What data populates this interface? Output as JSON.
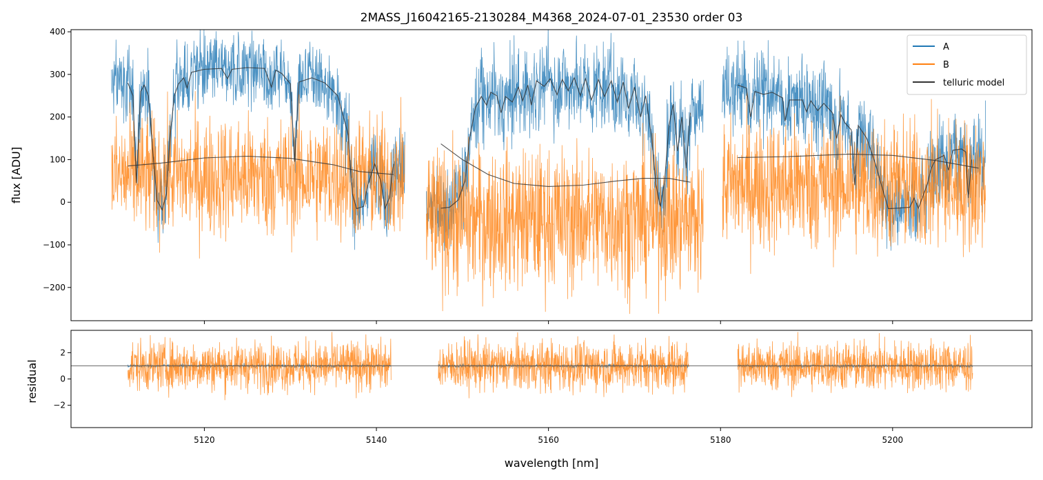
{
  "chart_data": [
    {
      "type": "line",
      "title": "2MASS_J16042165-2130284_M4368_2024-07-01_23530  order 03",
      "ylabel": "flux [ADU]",
      "xlabel": "",
      "xlim": [
        5104.5,
        5216.2
      ],
      "ylim": [
        -278,
        405
      ],
      "yticks": [
        -200,
        -100,
        0,
        100,
        200,
        300,
        400
      ],
      "ytick_labels": [
        "−200",
        "−100",
        "0",
        "100",
        "200",
        "300",
        "400"
      ],
      "xticks": [
        5120,
        5140,
        5160,
        5180,
        5200
      ],
      "legend": {
        "placement": "top-right",
        "entries": [
          {
            "label": "A",
            "color": "#1f77b4"
          },
          {
            "label": "B",
            "color": "#ff7f0e"
          },
          {
            "label": "telluric model",
            "color": "#333333"
          }
        ]
      },
      "segments": [
        {
          "x_range": [
            5109.2,
            5143.3
          ],
          "A_level": 300,
          "A_noise": 90,
          "B_level": 60,
          "B_noise": 120
        },
        {
          "x_range": [
            5145.8,
            5178.0
          ],
          "A_level": 240,
          "A_noise": 100,
          "B_level": -40,
          "B_noise": 140
        },
        {
          "x_range": [
            5180.2,
            5210.8
          ],
          "A_level": 190,
          "A_noise": 100,
          "B_level": 40,
          "B_noise": 130
        }
      ],
      "telluric_A": [
        [
          [
            5111.1,
            280
          ],
          [
            5111.7,
            250
          ],
          [
            5112.1,
            45
          ],
          [
            5112.6,
            260
          ],
          [
            5113.0,
            275
          ],
          [
            5113.5,
            250
          ],
          [
            5114.0,
            120
          ],
          [
            5114.5,
            5
          ],
          [
            5115.1,
            -18
          ],
          [
            5115.6,
            20
          ],
          [
            5116.0,
            150
          ],
          [
            5116.5,
            250
          ],
          [
            5117.0,
            278
          ],
          [
            5117.6,
            292
          ],
          [
            5118.0,
            268
          ],
          [
            5118.5,
            305
          ],
          [
            5120.0,
            312
          ],
          [
            5122.0,
            314
          ],
          [
            5122.7,
            290
          ],
          [
            5123.2,
            312
          ],
          [
            5125.0,
            316
          ],
          [
            5127.0,
            314
          ],
          [
            5127.8,
            270
          ],
          [
            5128.3,
            310
          ],
          [
            5129.0,
            302
          ],
          [
            5130.0,
            278
          ],
          [
            5130.5,
            95
          ],
          [
            5131.0,
            282
          ],
          [
            5132.5,
            292
          ],
          [
            5134.0,
            280
          ],
          [
            5135.5,
            250
          ],
          [
            5136.7,
            160
          ],
          [
            5137.2,
            20
          ],
          [
            5137.7,
            -15
          ],
          [
            5138.5,
            -10
          ],
          [
            5139.0,
            40
          ],
          [
            5139.8,
            90
          ],
          [
            5140.5,
            50
          ],
          [
            5141.0,
            -15
          ],
          [
            5141.5,
            10
          ],
          [
            5142.0,
            90
          ]
        ],
        [
          [
            5147.5,
            -14
          ],
          [
            5148.5,
            -12
          ],
          [
            5149.5,
            5
          ],
          [
            5150.3,
            50
          ],
          [
            5150.8,
            145
          ],
          [
            5151.5,
            222
          ],
          [
            5152.2,
            248
          ],
          [
            5152.8,
            228
          ],
          [
            5153.3,
            258
          ],
          [
            5154.0,
            250
          ],
          [
            5154.5,
            210
          ],
          [
            5155.0,
            248
          ],
          [
            5155.8,
            235
          ],
          [
            5156.5,
            270
          ],
          [
            5157.0,
            238
          ],
          [
            5157.6,
            275
          ],
          [
            5158.0,
            228
          ],
          [
            5158.6,
            285
          ],
          [
            5159.5,
            272
          ],
          [
            5160.2,
            290
          ],
          [
            5161.0,
            252
          ],
          [
            5161.6,
            288
          ],
          [
            5162.3,
            262
          ],
          [
            5163.0,
            292
          ],
          [
            5163.7,
            250
          ],
          [
            5164.3,
            290
          ],
          [
            5165.0,
            240
          ],
          [
            5165.8,
            288
          ],
          [
            5166.5,
            248
          ],
          [
            5167.3,
            285
          ],
          [
            5168.0,
            235
          ],
          [
            5168.7,
            282
          ],
          [
            5169.3,
            220
          ],
          [
            5170.0,
            270
          ],
          [
            5170.7,
            200
          ],
          [
            5171.3,
            250
          ],
          [
            5172.0,
            150
          ],
          [
            5172.5,
            40
          ],
          [
            5173.0,
            -10
          ],
          [
            5173.5,
            50
          ],
          [
            5174.0,
            180
          ],
          [
            5174.5,
            230
          ],
          [
            5175.0,
            120
          ],
          [
            5175.5,
            200
          ],
          [
            5176.0,
            80
          ],
          [
            5176.5,
            210
          ]
        ],
        [
          [
            5182.0,
            275
          ],
          [
            5183.0,
            268
          ],
          [
            5183.5,
            200
          ],
          [
            5184.0,
            260
          ],
          [
            5185.0,
            253
          ],
          [
            5186.0,
            258
          ],
          [
            5187.2,
            245
          ],
          [
            5187.5,
            190
          ],
          [
            5188.0,
            240
          ],
          [
            5189.5,
            240
          ],
          [
            5190.0,
            212
          ],
          [
            5190.5,
            238
          ],
          [
            5191.3,
            215
          ],
          [
            5192.0,
            232
          ],
          [
            5193.0,
            210
          ],
          [
            5193.5,
            150
          ],
          [
            5194.0,
            205
          ],
          [
            5194.5,
            185
          ],
          [
            5195.2,
            170
          ],
          [
            5195.6,
            40
          ],
          [
            5196.0,
            180
          ],
          [
            5197.0,
            150
          ],
          [
            5198.0,
            90
          ],
          [
            5199.0,
            20
          ],
          [
            5199.5,
            -15
          ],
          [
            5200.5,
            -14
          ],
          [
            5202.0,
            -12
          ],
          [
            5202.5,
            10
          ],
          [
            5203.0,
            -14
          ],
          [
            5204.0,
            40
          ],
          [
            5204.5,
            80
          ],
          [
            5205.0,
            100
          ],
          [
            5206.0,
            110
          ],
          [
            5206.5,
            75
          ],
          [
            5207.0,
            122
          ],
          [
            5208.0,
            125
          ],
          [
            5208.5,
            118
          ],
          [
            5208.8,
            10
          ],
          [
            5209.2,
            100
          ]
        ]
      ],
      "telluric_B": [
        [
          [
            5111.1,
            85
          ],
          [
            5115.0,
            92
          ],
          [
            5120.0,
            104
          ],
          [
            5125.0,
            108
          ],
          [
            5130.0,
            103
          ],
          [
            5135.0,
            88
          ],
          [
            5138.0,
            72
          ],
          [
            5142.0,
            65
          ]
        ],
        [
          [
            5147.5,
            137
          ],
          [
            5150.0,
            100
          ],
          [
            5153.0,
            65
          ],
          [
            5156.0,
            44
          ],
          [
            5160.0,
            37
          ],
          [
            5164.0,
            40
          ],
          [
            5168.0,
            50
          ],
          [
            5171.0,
            56
          ],
          [
            5174.0,
            56
          ],
          [
            5176.5,
            47
          ]
        ],
        [
          [
            5182.0,
            105
          ],
          [
            5188.0,
            107
          ],
          [
            5195.0,
            113
          ],
          [
            5200.0,
            110
          ],
          [
            5205.0,
            98
          ],
          [
            5210.0,
            80
          ]
        ]
      ]
    },
    {
      "type": "line",
      "title": "",
      "ylabel": "residual",
      "xlabel": "wavelength [nm]",
      "xlim": [
        5104.5,
        5216.2
      ],
      "ylim": [
        -3.7,
        3.7
      ],
      "yticks": [
        -2,
        0,
        2
      ],
      "ytick_labels": [
        "−2",
        "0",
        "2"
      ],
      "xticks": [
        5120,
        5140,
        5160,
        5180,
        5200
      ],
      "xtick_labels": [
        "5120",
        "5140",
        "5160",
        "5180",
        "5200"
      ],
      "reference_line": 1,
      "segments": [
        {
          "x_range": [
            5111.1,
            5141.7
          ],
          "A_noise": 0.12,
          "B_noise": 1.6
        },
        {
          "x_range": [
            5147.2,
            5176.3
          ],
          "A_noise": 0.12,
          "B_noise": 1.6
        },
        {
          "x_range": [
            5182.0,
            5209.3
          ],
          "A_noise": 0.12,
          "B_noise": 1.6
        }
      ]
    }
  ]
}
